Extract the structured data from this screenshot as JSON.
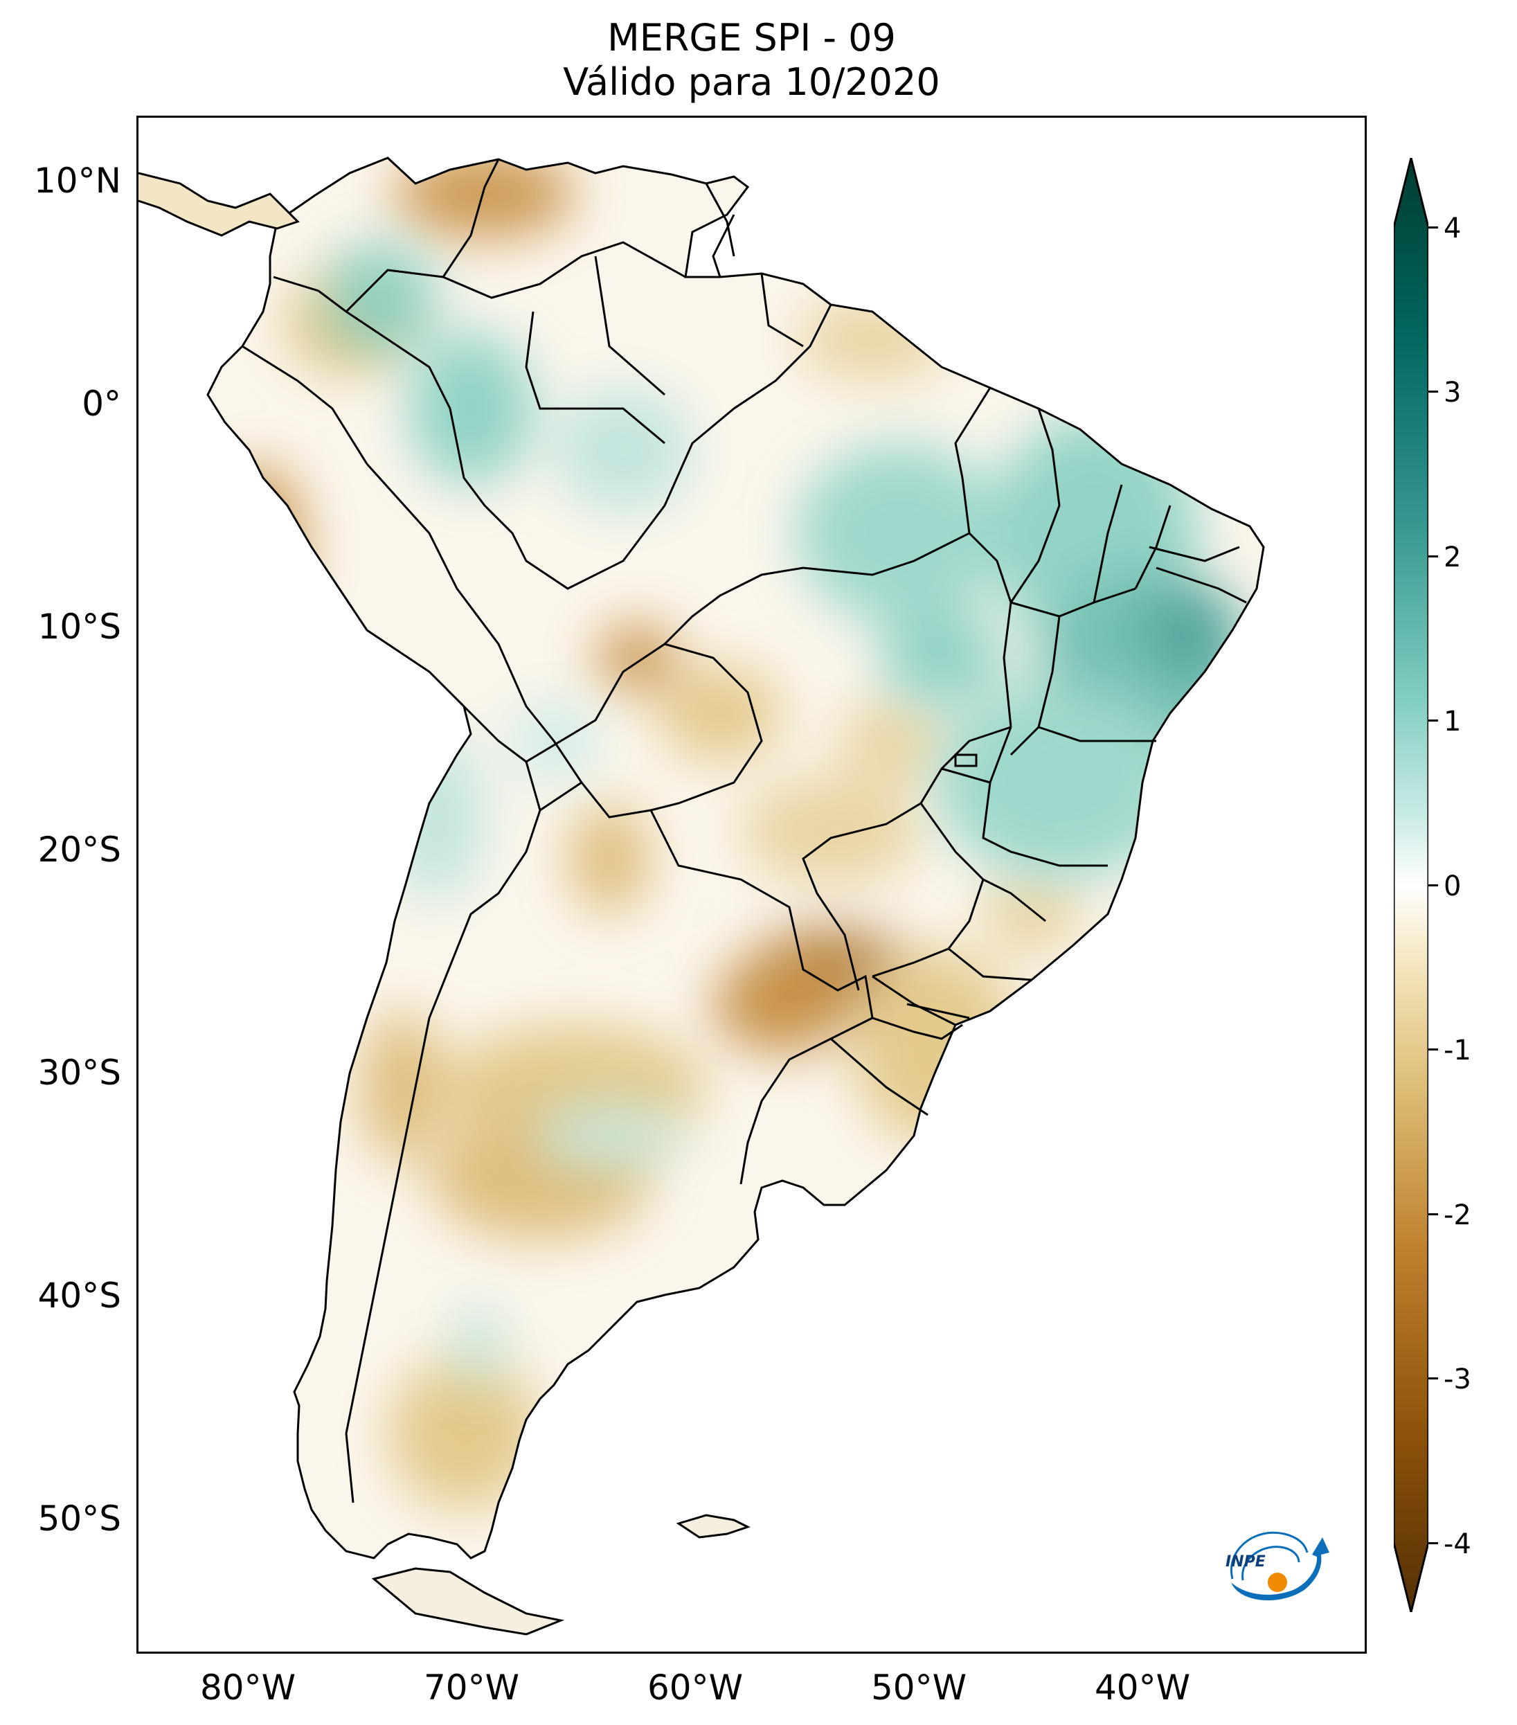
{
  "title": {
    "line1": "MERGE   SPI - 09",
    "line2": "Válido para 10/2020"
  },
  "map": {
    "region": "South America",
    "projection": "PlateCarree",
    "lon_range": [
      -85,
      -30
    ],
    "lat_range": [
      -56,
      13
    ],
    "lat_ticks": [
      {
        "value": 10,
        "label": "10°N"
      },
      {
        "value": 0,
        "label": "0°"
      },
      {
        "value": -10,
        "label": "10°S"
      },
      {
        "value": -20,
        "label": "20°S"
      },
      {
        "value": -30,
        "label": "30°S"
      },
      {
        "value": -40,
        "label": "40°S"
      },
      {
        "value": -50,
        "label": "50°S"
      }
    ],
    "lon_ticks": [
      {
        "value": -80,
        "label": "80°W"
      },
      {
        "value": -70,
        "label": "70°W"
      },
      {
        "value": -60,
        "label": "60°W"
      },
      {
        "value": -50,
        "label": "50°W"
      },
      {
        "value": -40,
        "label": "40°W"
      }
    ]
  },
  "colorbar": {
    "min": -4,
    "max": 4,
    "extend": "both",
    "colormap": "BrBG",
    "ticks": [
      "4",
      "3",
      "2",
      "1",
      "0",
      "-1",
      "-2",
      "-3",
      "-4"
    ],
    "colors": [
      "#543005",
      "#8c510a",
      "#bf812d",
      "#dfc27d",
      "#f6e8c3",
      "#ffffff",
      "#c7eae5",
      "#80cdc1",
      "#35978f",
      "#01665e",
      "#003c30"
    ]
  },
  "logo": {
    "text": "INPE",
    "accent_blue": "#0a6fb8",
    "accent_orange": "#f08a00"
  }
}
